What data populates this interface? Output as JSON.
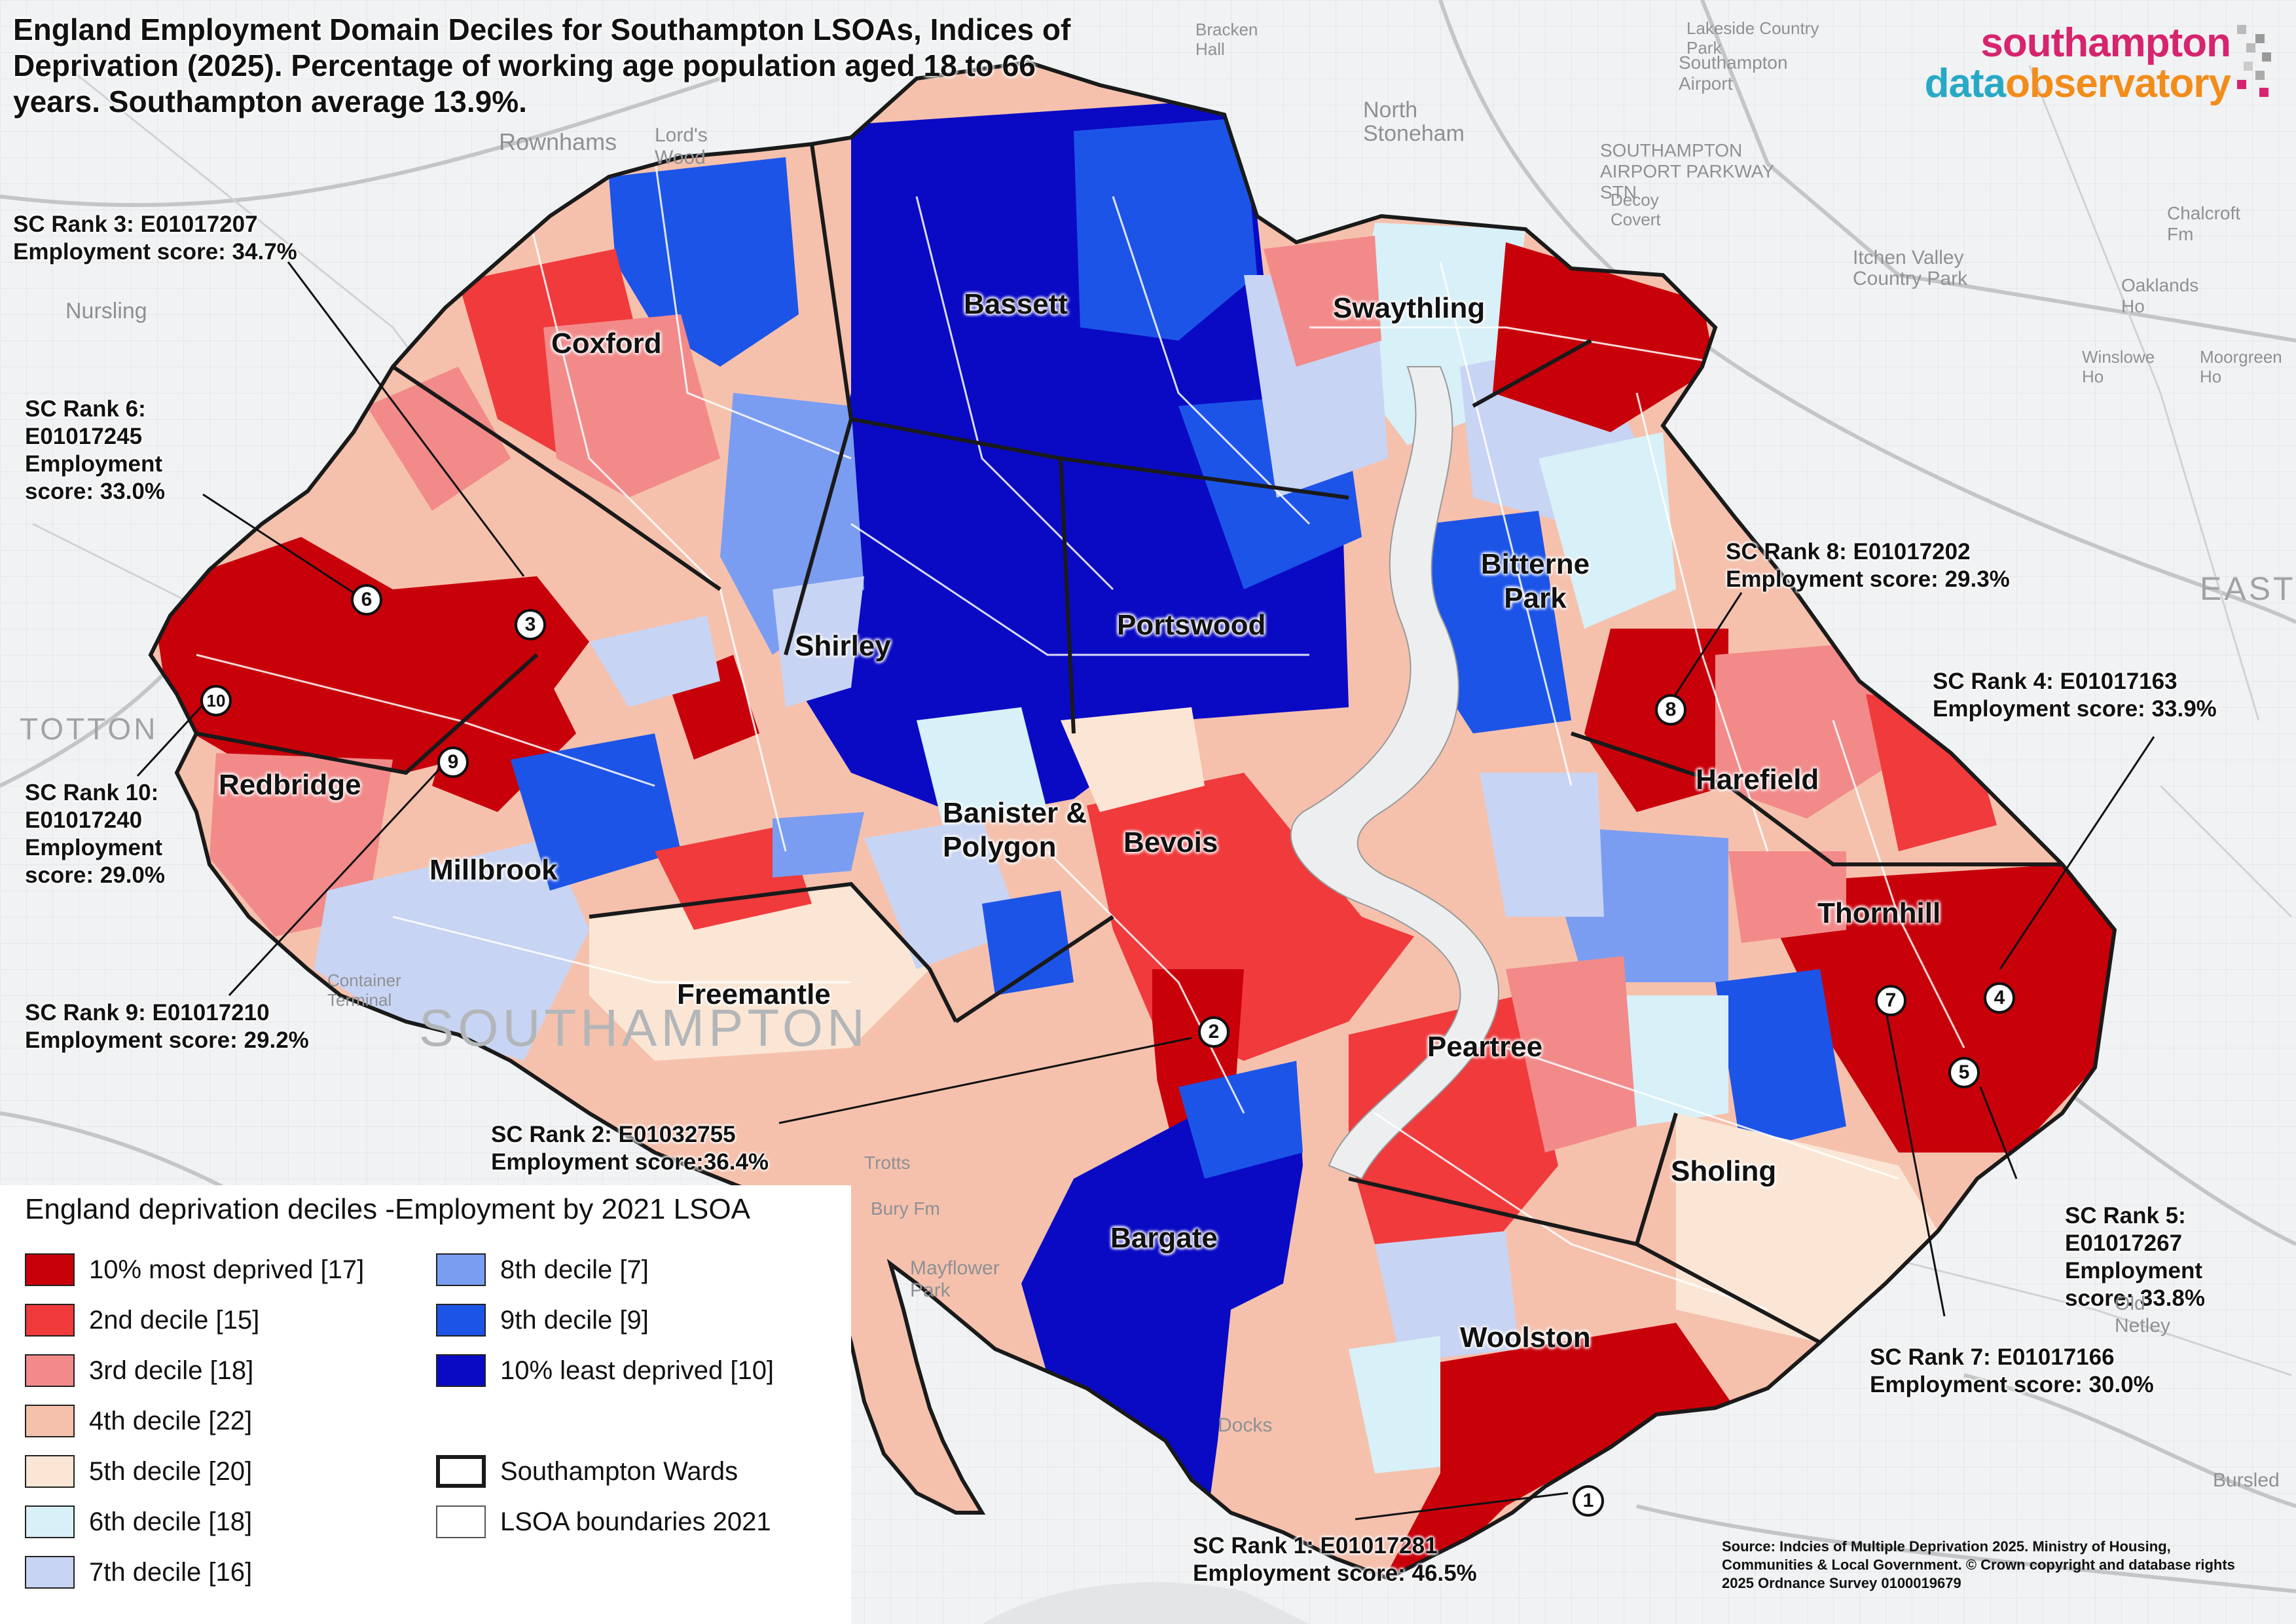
{
  "title": "England Employment Domain Deciles for Southampton LSOAs, Indices of Deprivation (2025). Percentage of working age population aged 18 to 66 years.  Southampton average 13.9%.",
  "logo": {
    "line1": "southampton",
    "line2a": "data",
    "line2b": "observatory"
  },
  "colors": {
    "d1": "#c8000a",
    "d2": "#f03a3c",
    "d3": "#f28a8a",
    "d4": "#f5c1ad",
    "d5": "#fbe6d5",
    "d6": "#d8f0f7",
    "d7": "#c8d4f3",
    "d8": "#7a9df2",
    "d9": "#1d54e8",
    "d10": "#0a0ac4",
    "ward": "#1a1a1a",
    "lsoa": "#ffffff",
    "logo_pink": "#d6246e",
    "logo_blue": "#27a9c6",
    "logo_orange": "#f28c1a"
  },
  "wards": [
    "Bassett",
    "Swaythling",
    "Coxford",
    "Bitterne Park",
    "Portswood",
    "Shirley",
    "Redbridge",
    "Harefield",
    "Millbrook",
    "Banister & Polygon",
    "Bevois",
    "Thornhill",
    "Freemantle",
    "Peartree",
    "Sholing",
    "Bargate",
    "Woolston"
  ],
  "annotations": [
    {
      "rank": "SC Rank 3: E01017207\nEmployment score: 34.7%",
      "marker": "3"
    },
    {
      "rank": "SC Rank 6:\nE01017245\nEmployment\nscore: 33.0%",
      "marker": "6"
    },
    {
      "rank": "SC Rank 10:\nE01017240\nEmployment\nscore: 29.0%",
      "marker": "10"
    },
    {
      "rank": "SC Rank 9: E01017210\nEmployment score: 29.2%",
      "marker": "9"
    },
    {
      "rank": "SC Rank 8: E01017202\nEmployment score: 29.3%",
      "marker": "8"
    },
    {
      "rank": "SC Rank 4: E01017163\nEmployment score: 33.9%",
      "marker": "4"
    },
    {
      "rank": "SC Rank 2: E01032755\nEmployment score:36.4%",
      "marker": "2"
    },
    {
      "rank": "SC Rank 5:\nE01017267\nEmployment\nscore: 33.8%",
      "marker": "5"
    },
    {
      "rank": "SC Rank 7: E01017166\nEmployment score: 30.0%",
      "marker": "7"
    },
    {
      "rank": "SC Rank 1: E01017281\nEmployment score: 46.5%",
      "marker": "1"
    }
  ],
  "legend": {
    "title": "England deprivation deciles -Employment by 2021 LSOA",
    "items": [
      {
        "label": "10% most deprived [17]",
        "color": "#c8000a"
      },
      {
        "label": "2nd decile [15]",
        "color": "#f03a3c"
      },
      {
        "label": "3rd decile [18]",
        "color": "#f28a8a"
      },
      {
        "label": "4th decile [22]",
        "color": "#f5c1ad"
      },
      {
        "label": "5th decile [20]",
        "color": "#fbe6d5"
      },
      {
        "label": "6th decile [18]",
        "color": "#d8f0f7"
      },
      {
        "label": "7th decile [16]",
        "color": "#c8d4f3"
      },
      {
        "label": "8th decile [7]",
        "color": "#7a9df2"
      },
      {
        "label": "9th decile [9]",
        "color": "#1d54e8"
      },
      {
        "label": "10% least deprived [10]",
        "color": "#0a0ac4"
      },
      {
        "label": "Southampton Wards",
        "color": "#ffffff"
      },
      {
        "label": "LSOA boundaries 2021",
        "color": "#ffffff"
      }
    ]
  },
  "basemap_labels": [
    "Rownhams",
    "Lord's Wood",
    "Nursling",
    "North Stoneham",
    "SOUTHAMPTON AIRPORT PARKWAY STN",
    "Southampton Airport",
    "Itchen Valley Country Park",
    "Chalcroft Fm",
    "Oaklands Ho",
    "Winslowe Ho",
    "Moorgreen Ho",
    "EASTLE",
    "TOTTON",
    "SOUTHAMPTON",
    "Container Terminal",
    "Mayflower Park",
    "Docks",
    "Trotts",
    "Bury Fm",
    "Old Netley",
    "Bursled",
    "Lakeside Country Park",
    "Bracken Hall",
    "Decoy Covert"
  ],
  "source": "Source: Indcies of Multiple Deprivation 2025. Ministry of Housing, Communities & Local Government. © Crown copyright and database rights 2025 Ordnance Survey 0100019679"
}
